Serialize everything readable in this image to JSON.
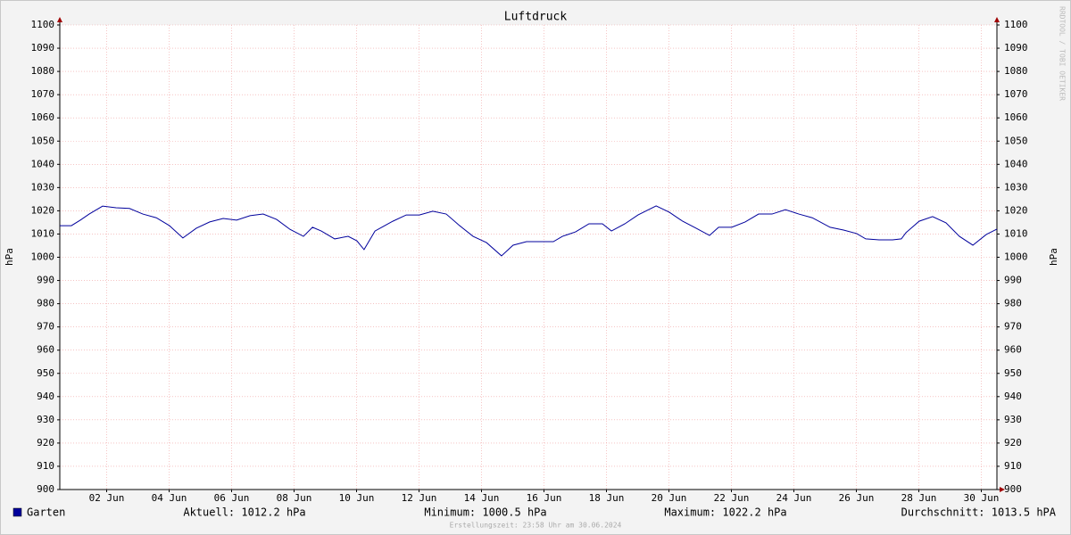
{
  "chart_data": {
    "type": "line",
    "title": "Luftdruck",
    "y_label": "hPa",
    "y2_label": "hPa",
    "x": [
      1.0,
      1.37,
      1.66,
      1.94,
      2.37,
      2.8,
      3.23,
      3.66,
      4.09,
      4.51,
      4.94,
      5.37,
      5.8,
      6.23,
      6.66,
      7.09,
      7.51,
      7.94,
      8.37,
      8.8,
      9.09,
      9.37,
      9.8,
      10.23,
      10.51,
      10.74,
      11.09,
      11.66,
      12.09,
      12.51,
      12.94,
      13.37,
      13.8,
      14.23,
      14.66,
      15.14,
      15.51,
      15.94,
      16.37,
      16.8,
      17.09,
      17.51,
      17.94,
      18.37,
      18.66,
      19.09,
      19.51,
      20.09,
      20.51,
      20.94,
      21.37,
      21.8,
      22.09,
      22.51,
      22.94,
      23.37,
      23.8,
      24.23,
      24.66,
      25.09,
      25.66,
      26.09,
      26.51,
      26.8,
      27.23,
      27.66,
      27.94,
      28.09,
      28.51,
      28.94,
      29.37,
      29.8,
      30.23,
      30.66,
      31.0
    ],
    "series": [
      {
        "name": "Garten",
        "color": "#00009c",
        "values": [
          1013.6,
          1013.6,
          1016,
          1018.6,
          1022,
          1021.3,
          1021,
          1018.6,
          1017,
          1013.6,
          1008.3,
          1012.5,
          1015.2,
          1016.7,
          1016,
          1017.9,
          1018.6,
          1016.3,
          1012,
          1009,
          1012.9,
          1011.3,
          1007.9,
          1009,
          1007.1,
          1003.3,
          1011.3,
          1015.5,
          1018.2,
          1018.2,
          1019.8,
          1018.6,
          1013.6,
          1009,
          1006.3,
          1000.6,
          1005.2,
          1006.7,
          1006.7,
          1006.7,
          1009,
          1010.9,
          1014.4,
          1014.4,
          1011.3,
          1014.4,
          1018.2,
          1022.1,
          1019.4,
          1015.5,
          1012.5,
          1009.4,
          1012.9,
          1012.9,
          1015.2,
          1018.6,
          1018.6,
          1020.5,
          1018.6,
          1017,
          1012.9,
          1011.7,
          1010.2,
          1007.9,
          1007.5,
          1007.5,
          1007.9,
          1010.6,
          1015.5,
          1017.5,
          1014.8,
          1009,
          1005.2,
          1009.8,
          1012.1
        ]
      }
    ],
    "xlim": [
      1,
      31
    ],
    "xticks": [
      {
        "value": 2.5,
        "label": "02 Jun"
      },
      {
        "value": 4.5,
        "label": "04 Jun"
      },
      {
        "value": 6.5,
        "label": "06 Jun"
      },
      {
        "value": 8.5,
        "label": "08 Jun"
      },
      {
        "value": 10.5,
        "label": "10 Jun"
      },
      {
        "value": 12.5,
        "label": "12 Jun"
      },
      {
        "value": 14.5,
        "label": "14 Jun"
      },
      {
        "value": 16.5,
        "label": "16 Jun"
      },
      {
        "value": 18.5,
        "label": "18 Jun"
      },
      {
        "value": 20.5,
        "label": "20 Jun"
      },
      {
        "value": 22.5,
        "label": "22 Jun"
      },
      {
        "value": 24.5,
        "label": "24 Jun"
      },
      {
        "value": 26.5,
        "label": "26 Jun"
      },
      {
        "value": 28.5,
        "label": "28 Jun"
      },
      {
        "value": 30.5,
        "label": "30 Jun"
      }
    ],
    "ylim": [
      900,
      1100
    ],
    "yticks": [
      900,
      910,
      920,
      930,
      940,
      950,
      960,
      970,
      980,
      990,
      1000,
      1010,
      1020,
      1030,
      1040,
      1050,
      1060,
      1070,
      1080,
      1090,
      1100
    ],
    "grid": true,
    "stats": [
      "Aktuell: 1012.2 hPa",
      "Minimum: 1000.5 hPa",
      "Maximum: 1022.2 hPa",
      "Durchschnitt: 1013.5 hPA"
    ],
    "footer": "Erstellungszeit: 23:58 Uhr am 30.06.2024",
    "watermark": "RRDTOOL / TOBI OETIKER"
  }
}
